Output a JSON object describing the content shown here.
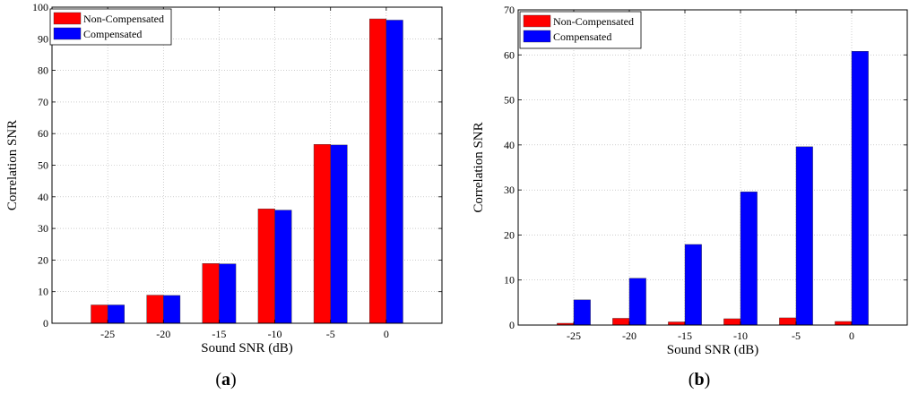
{
  "chart_data": [
    {
      "type": "bar",
      "panel_label": "a",
      "categories": [
        "-25",
        "-20",
        "-15",
        "-10",
        "-5",
        "0"
      ],
      "series": [
        {
          "name": "Non-Compensated",
          "color": "#ff0000",
          "values": [
            5.8,
            8.9,
            18.9,
            36.2,
            56.6,
            96.3
          ]
        },
        {
          "name": "Compensated",
          "color": "#0000ff",
          "values": [
            5.8,
            8.8,
            18.8,
            35.8,
            56.4,
            95.9
          ]
        }
      ],
      "xlabel": "Sound SNR (dB)",
      "ylabel": "Correlation SNR",
      "ylim": [
        0,
        100
      ],
      "yticks": [
        "0",
        "10",
        "20",
        "30",
        "40",
        "50",
        "60",
        "70",
        "80",
        "90",
        "100"
      ],
      "grid": true,
      "legend": "top-left"
    },
    {
      "type": "bar",
      "panel_label": "b",
      "categories": [
        "-25",
        "-20",
        "-15",
        "-10",
        "-5",
        "0"
      ],
      "series": [
        {
          "name": "Non-Compensated",
          "color": "#ff0000",
          "values": [
            0.4,
            1.5,
            0.7,
            1.4,
            1.6,
            0.8
          ]
        },
        {
          "name": "Compensated",
          "color": "#0000ff",
          "values": [
            5.6,
            10.4,
            17.9,
            29.6,
            39.6,
            60.8
          ]
        }
      ],
      "xlabel": "Sound SNR (dB)",
      "ylabel": "Correlation SNR",
      "ylim": [
        0,
        70
      ],
      "yticks": [
        "0",
        "10",
        "20",
        "30",
        "40",
        "50",
        "60",
        "70"
      ],
      "grid": true,
      "legend": "top-left"
    }
  ]
}
